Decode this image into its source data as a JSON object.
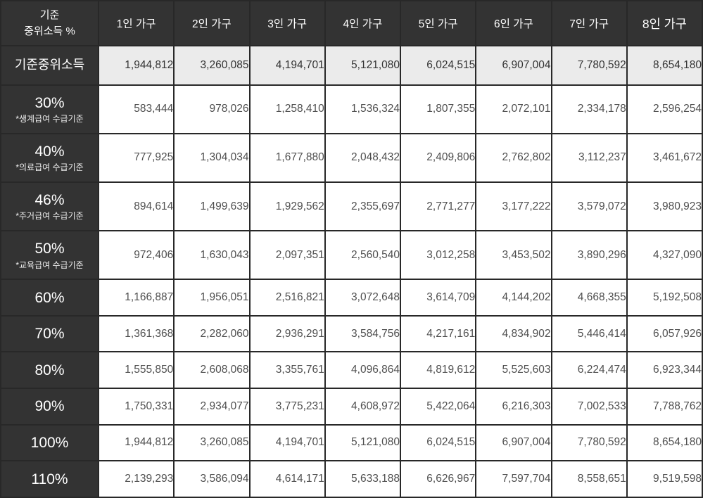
{
  "table": {
    "header": {
      "corner_line1": "기준",
      "corner_line2": "중위소득 %",
      "columns": [
        "1인 가구",
        "2인 가구",
        "3인 가구",
        "4인 가구",
        "5인 가구",
        "6인 가구",
        "7인 가구",
        "8인 가구"
      ]
    },
    "rows": [
      {
        "label": "기준중위소득",
        "sublabel": "",
        "highlight": true,
        "values": [
          "1,944,812",
          "3,260,085",
          "4,194,701",
          "5,121,080",
          "6,024,515",
          "6,907,004",
          "7,780,592",
          "8,654,180"
        ]
      },
      {
        "label": "30%",
        "sublabel": "*생계급여 수급기준",
        "highlight": false,
        "values": [
          "583,444",
          "978,026",
          "1,258,410",
          "1,536,324",
          "1,807,355",
          "2,072,101",
          "2,334,178",
          "2,596,254"
        ]
      },
      {
        "label": "40%",
        "sublabel": "*의료급여 수급기준",
        "highlight": false,
        "values": [
          "777,925",
          "1,304,034",
          "1,677,880",
          "2,048,432",
          "2,409,806",
          "2,762,802",
          "3,112,237",
          "3,461,672"
        ]
      },
      {
        "label": "46%",
        "sublabel": "*주거급여 수급기준",
        "highlight": false,
        "values": [
          "894,614",
          "1,499,639",
          "1,929,562",
          "2,355,697",
          "2,771,277",
          "3,177,222",
          "3,579,072",
          "3,980,923"
        ]
      },
      {
        "label": "50%",
        "sublabel": "*교육급여 수급기준",
        "highlight": false,
        "values": [
          "972,406",
          "1,630,043",
          "2,097,351",
          "2,560,540",
          "3,012,258",
          "3,453,502",
          "3,890,296",
          "4,327,090"
        ]
      },
      {
        "label": "60%",
        "sublabel": "",
        "highlight": false,
        "values": [
          "1,166,887",
          "1,956,051",
          "2,516,821",
          "3,072,648",
          "3,614,709",
          "4,144,202",
          "4,668,355",
          "5,192,508"
        ]
      },
      {
        "label": "70%",
        "sublabel": "",
        "highlight": false,
        "values": [
          "1,361,368",
          "2,282,060",
          "2,936,291",
          "3,584,756",
          "4,217,161",
          "4,834,902",
          "5,446,414",
          "6,057,926"
        ]
      },
      {
        "label": "80%",
        "sublabel": "",
        "highlight": false,
        "values": [
          "1,555,850",
          "2,608,068",
          "3,355,761",
          "4,096,864",
          "4,819,612",
          "5,525,603",
          "6,224,474",
          "6,923,344"
        ]
      },
      {
        "label": "90%",
        "sublabel": "",
        "highlight": false,
        "values": [
          "1,750,331",
          "2,934,077",
          "3,775,231",
          "4,608,972",
          "5,422,064",
          "6,216,303",
          "7,002,533",
          "7,788,762"
        ]
      },
      {
        "label": "100%",
        "sublabel": "",
        "highlight": false,
        "values": [
          "1,944,812",
          "3,260,085",
          "4,194,701",
          "5,121,080",
          "6,024,515",
          "6,907,004",
          "7,780,592",
          "8,654,180"
        ]
      },
      {
        "label": "110%",
        "sublabel": "",
        "highlight": false,
        "values": [
          "2,139,293",
          "3,586,094",
          "4,614,171",
          "5,633,188",
          "6,626,967",
          "7,597,704",
          "8,558,651",
          "9,519,598"
        ]
      }
    ],
    "colors": {
      "header_bg": "#333333",
      "header_text": "#ffffff",
      "highlight_row_bg": "#ebebeb",
      "cell_bg": "#ffffff",
      "cell_text": "#4f4f4f",
      "border": "#282828"
    }
  },
  "chart_data": {
    "type": "table",
    "columns": [
      "기준 중위소득 %",
      "1인 가구",
      "2인 가구",
      "3인 가구",
      "4인 가구",
      "5인 가구",
      "6인 가구",
      "7인 가구",
      "8인 가구"
    ],
    "rows": [
      [
        "기준중위소득",
        1944812,
        3260085,
        4194701,
        5121080,
        6024515,
        6907004,
        7780592,
        8654180
      ],
      [
        "30% (*생계급여 수급기준)",
        583444,
        978026,
        1258410,
        1536324,
        1807355,
        2072101,
        2334178,
        2596254
      ],
      [
        "40% (*의료급여 수급기준)",
        777925,
        1304034,
        1677880,
        2048432,
        2409806,
        2762802,
        3112237,
        3461672
      ],
      [
        "46% (*주거급여 수급기준)",
        894614,
        1499639,
        1929562,
        2355697,
        2771277,
        3177222,
        3579072,
        3980923
      ],
      [
        "50% (*교육급여 수급기준)",
        972406,
        1630043,
        2097351,
        2560540,
        3012258,
        3453502,
        3890296,
        4327090
      ],
      [
        "60%",
        1166887,
        1956051,
        2516821,
        3072648,
        3614709,
        4144202,
        4668355,
        5192508
      ],
      [
        "70%",
        1361368,
        2282060,
        2936291,
        3584756,
        4217161,
        4834902,
        5446414,
        6057926
      ],
      [
        "80%",
        1555850,
        2608068,
        3355761,
        4096864,
        4819612,
        5525603,
        6224474,
        6923344
      ],
      [
        "90%",
        1750331,
        2934077,
        3775231,
        4608972,
        5422064,
        6216303,
        7002533,
        7788762
      ],
      [
        "100%",
        1944812,
        3260085,
        4194701,
        5121080,
        6024515,
        6907004,
        7780592,
        8654180
      ],
      [
        "110%",
        2139293,
        3586094,
        4614171,
        5633188,
        6626967,
        7597704,
        8558651,
        9519598
      ]
    ]
  }
}
